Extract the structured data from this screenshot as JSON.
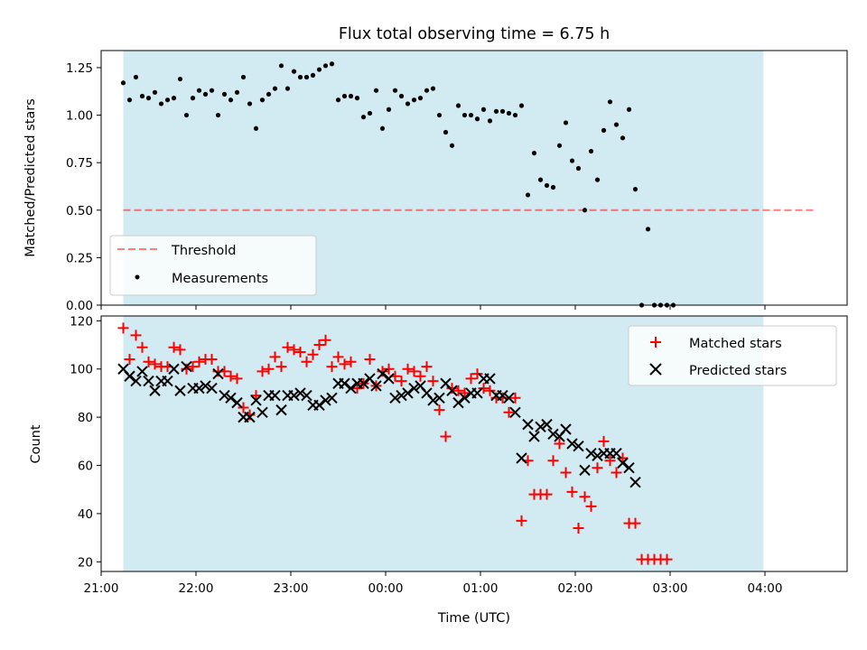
{
  "colors": {
    "shade": "#add8e6",
    "threshold": "#ff0000",
    "measurement": "#000000",
    "matched": "#ff0000",
    "predicted": "#000000"
  },
  "chart_data": [
    {
      "type": "scatter",
      "title": "Flux total observing time = 6.75 h",
      "ylabel": "Matched/Predicted stars",
      "xlabel": "",
      "xlim": [
        "21:00",
        "04:52"
      ],
      "ylim": [
        0,
        1.34
      ],
      "yticks": [
        "0.00",
        "0.25",
        "0.50",
        "0.75",
        "1.00",
        "1.25"
      ],
      "shaded_span": [
        "21:14",
        "03:59"
      ],
      "legend_placement": "lower-left",
      "threshold": {
        "name": "Threshold",
        "value": 0.5,
        "from": "21:14",
        "to": "04:31",
        "style": "dashed"
      },
      "series": [
        {
          "name": "Measurements",
          "points": [
            [
              "21:14",
              1.17
            ],
            [
              "21:18",
              1.08
            ],
            [
              "21:22",
              1.2
            ],
            [
              "21:26",
              1.1
            ],
            [
              "21:30",
              1.09
            ],
            [
              "21:34",
              1.12
            ],
            [
              "21:38",
              1.06
            ],
            [
              "21:42",
              1.08
            ],
            [
              "21:46",
              1.09
            ],
            [
              "21:50",
              1.19
            ],
            [
              "21:54",
              1.0
            ],
            [
              "21:58",
              1.09
            ],
            [
              "22:02",
              1.13
            ],
            [
              "22:06",
              1.11
            ],
            [
              "22:10",
              1.13
            ],
            [
              "22:14",
              1.0
            ],
            [
              "22:18",
              1.11
            ],
            [
              "22:22",
              1.08
            ],
            [
              "22:26",
              1.12
            ],
            [
              "22:30",
              1.2
            ],
            [
              "22:34",
              1.06
            ],
            [
              "22:38",
              0.93
            ],
            [
              "22:42",
              1.08
            ],
            [
              "22:46",
              1.11
            ],
            [
              "22:50",
              1.14
            ],
            [
              "22:54",
              1.26
            ],
            [
              "22:58",
              1.14
            ],
            [
              "23:02",
              1.23
            ],
            [
              "23:06",
              1.2
            ],
            [
              "23:10",
              1.2
            ],
            [
              "23:14",
              1.21
            ],
            [
              "23:18",
              1.24
            ],
            [
              "23:22",
              1.26
            ],
            [
              "23:26",
              1.27
            ],
            [
              "23:30",
              1.08
            ],
            [
              "23:34",
              1.1
            ],
            [
              "23:38",
              1.1
            ],
            [
              "23:42",
              1.09
            ],
            [
              "23:46",
              0.99
            ],
            [
              "23:50",
              1.01
            ],
            [
              "23:54",
              1.13
            ],
            [
              "23:58",
              0.93
            ],
            [
              "00:02",
              1.03
            ],
            [
              "00:06",
              1.13
            ],
            [
              "00:10",
              1.1
            ],
            [
              "00:14",
              1.06
            ],
            [
              "00:18",
              1.08
            ],
            [
              "00:22",
              1.09
            ],
            [
              "00:26",
              1.13
            ],
            [
              "00:30",
              1.14
            ],
            [
              "00:34",
              1.0
            ],
            [
              "00:38",
              0.91
            ],
            [
              "00:42",
              0.84
            ],
            [
              "00:46",
              1.05
            ],
            [
              "00:50",
              1.0
            ],
            [
              "00:54",
              1.0
            ],
            [
              "00:58",
              0.98
            ],
            [
              "01:02",
              1.03
            ],
            [
              "01:06",
              0.97
            ],
            [
              "01:10",
              1.02
            ],
            [
              "01:14",
              1.02
            ],
            [
              "01:18",
              1.01
            ],
            [
              "01:22",
              1.0
            ],
            [
              "01:26",
              1.05
            ],
            [
              "01:30",
              0.58
            ],
            [
              "01:34",
              0.8
            ],
            [
              "01:38",
              0.66
            ],
            [
              "01:42",
              0.63
            ],
            [
              "01:46",
              0.62
            ],
            [
              "01:50",
              0.84
            ],
            [
              "01:54",
              0.96
            ],
            [
              "01:58",
              0.76
            ],
            [
              "02:02",
              0.72
            ],
            [
              "02:06",
              0.5
            ],
            [
              "02:10",
              0.81
            ],
            [
              "02:14",
              0.66
            ],
            [
              "02:18",
              0.92
            ],
            [
              "02:22",
              1.07
            ],
            [
              "02:26",
              0.95
            ],
            [
              "02:30",
              0.88
            ],
            [
              "02:34",
              1.03
            ],
            [
              "02:38",
              0.61
            ],
            [
              "02:42",
              0.0
            ],
            [
              "02:46",
              0.4
            ],
            [
              "02:50",
              0.0
            ],
            [
              "02:54",
              0.0
            ],
            [
              "02:58",
              0.0
            ],
            [
              "03:02",
              0.0
            ]
          ]
        }
      ]
    },
    {
      "type": "scatter",
      "title": "",
      "ylabel": "Count",
      "xlabel": "Time (UTC)",
      "xlim": [
        "21:00",
        "04:52"
      ],
      "ylim": [
        16,
        122
      ],
      "yticks": [
        "20",
        "40",
        "60",
        "80",
        "100",
        "120"
      ],
      "xticks": [
        "21:00",
        "22:00",
        "23:00",
        "00:00",
        "01:00",
        "02:00",
        "03:00",
        "04:00"
      ],
      "shaded_span": [
        "21:14",
        "03:59"
      ],
      "legend_placement": "upper-right",
      "series": [
        {
          "name": "Matched stars",
          "marker": "plus",
          "points": [
            [
              "21:14",
              117
            ],
            [
              "21:18",
              104
            ],
            [
              "21:22",
              114
            ],
            [
              "21:26",
              109
            ],
            [
              "21:30",
              103
            ],
            [
              "21:34",
              102
            ],
            [
              "21:38",
              101
            ],
            [
              "21:42",
              101
            ],
            [
              "21:46",
              109
            ],
            [
              "21:50",
              108
            ],
            [
              "21:54",
              100
            ],
            [
              "21:58",
              101
            ],
            [
              "22:02",
              103
            ],
            [
              "22:06",
              104
            ],
            [
              "22:10",
              104
            ],
            [
              "22:14",
              99
            ],
            [
              "22:18",
              99
            ],
            [
              "22:22",
              97
            ],
            [
              "22:26",
              96
            ],
            [
              "22:30",
              84
            ],
            [
              "22:34",
              81
            ],
            [
              "22:38",
              89
            ],
            [
              "22:42",
              99
            ],
            [
              "22:46",
              100
            ],
            [
              "22:50",
              105
            ],
            [
              "22:54",
              101
            ],
            [
              "22:58",
              109
            ],
            [
              "23:02",
              108
            ],
            [
              "23:06",
              107
            ],
            [
              "23:10",
              103
            ],
            [
              "23:14",
              106
            ],
            [
              "23:18",
              110
            ],
            [
              "23:22",
              112
            ],
            [
              "23:26",
              101
            ],
            [
              "23:30",
              105
            ],
            [
              "23:34",
              102
            ],
            [
              "23:38",
              103
            ],
            [
              "23:42",
              92
            ],
            [
              "23:46",
              94
            ],
            [
              "23:50",
              104
            ],
            [
              "23:54",
              93
            ],
            [
              "23:58",
              99
            ],
            [
              "00:02",
              100
            ],
            [
              "00:06",
              97
            ],
            [
              "00:10",
              95
            ],
            [
              "00:14",
              100
            ],
            [
              "00:18",
              99
            ],
            [
              "00:22",
              97
            ],
            [
              "00:26",
              101
            ],
            [
              "00:30",
              95
            ],
            [
              "00:34",
              83
            ],
            [
              "00:38",
              72
            ],
            [
              "00:42",
              92
            ],
            [
              "00:46",
              91
            ],
            [
              "00:50",
              90
            ],
            [
              "00:54",
              96
            ],
            [
              "00:58",
              98
            ],
            [
              "01:02",
              92
            ],
            [
              "01:06",
              91
            ],
            [
              "01:10",
              88
            ],
            [
              "01:14",
              88
            ],
            [
              "01:18",
              82
            ],
            [
              "01:22",
              88
            ],
            [
              "01:26",
              37
            ],
            [
              "01:30",
              62
            ],
            [
              "01:34",
              48
            ],
            [
              "01:38",
              48
            ],
            [
              "01:42",
              48
            ],
            [
              "01:46",
              62
            ],
            [
              "01:50",
              69
            ],
            [
              "01:54",
              57
            ],
            [
              "01:58",
              49
            ],
            [
              "02:02",
              34
            ],
            [
              "02:06",
              47
            ],
            [
              "02:10",
              43
            ],
            [
              "02:14",
              59
            ],
            [
              "02:18",
              70
            ],
            [
              "02:22",
              62
            ],
            [
              "02:26",
              57
            ],
            [
              "02:30",
              63
            ],
            [
              "02:34",
              36
            ],
            [
              "02:38",
              36
            ],
            [
              "02:42",
              21
            ],
            [
              "02:46",
              21
            ],
            [
              "02:50",
              21
            ],
            [
              "02:54",
              21
            ],
            [
              "02:58",
              21
            ]
          ]
        },
        {
          "name": "Predicted stars",
          "marker": "x",
          "points": [
            [
              "21:14",
              100
            ],
            [
              "21:18",
              97
            ],
            [
              "21:22",
              95
            ],
            [
              "21:26",
              99
            ],
            [
              "21:30",
              95
            ],
            [
              "21:34",
              91
            ],
            [
              "21:38",
              95
            ],
            [
              "21:42",
              95
            ],
            [
              "21:46",
              100
            ],
            [
              "21:50",
              91
            ],
            [
              "21:54",
              101
            ],
            [
              "21:58",
              92
            ],
            [
              "22:02",
              92
            ],
            [
              "22:06",
              93
            ],
            [
              "22:10",
              92
            ],
            [
              "22:14",
              98
            ],
            [
              "22:18",
              89
            ],
            [
              "22:22",
              88
            ],
            [
              "22:26",
              86
            ],
            [
              "22:30",
              80
            ],
            [
              "22:34",
              80
            ],
            [
              "22:38",
              87
            ],
            [
              "22:42",
              82
            ],
            [
              "22:46",
              89
            ],
            [
              "22:50",
              89
            ],
            [
              "22:54",
              83
            ],
            [
              "22:58",
              89
            ],
            [
              "23:02",
              89
            ],
            [
              "23:06",
              90
            ],
            [
              "23:10",
              89
            ],
            [
              "23:14",
              85
            ],
            [
              "23:18",
              85
            ],
            [
              "23:22",
              87
            ],
            [
              "23:26",
              88
            ],
            [
              "23:30",
              94
            ],
            [
              "23:34",
              94
            ],
            [
              "23:38",
              92
            ],
            [
              "23:42",
              94
            ],
            [
              "23:46",
              94
            ],
            [
              "23:50",
              96
            ],
            [
              "23:54",
              93
            ],
            [
              "23:58",
              98
            ],
            [
              "00:02",
              96
            ],
            [
              "00:06",
              88
            ],
            [
              "00:10",
              89
            ],
            [
              "00:14",
              90
            ],
            [
              "00:18",
              92
            ],
            [
              "00:22",
              93
            ],
            [
              "00:26",
              90
            ],
            [
              "00:30",
              87
            ],
            [
              "00:34",
              88
            ],
            [
              "00:38",
              94
            ],
            [
              "00:42",
              91
            ],
            [
              "00:46",
              86
            ],
            [
              "00:50",
              88
            ],
            [
              "00:54",
              90
            ],
            [
              "00:58",
              90
            ],
            [
              "01:02",
              96
            ],
            [
              "01:06",
              96
            ],
            [
              "01:10",
              89
            ],
            [
              "01:14",
              89
            ],
            [
              "01:18",
              88
            ],
            [
              "01:22",
              82
            ],
            [
              "01:26",
              63
            ],
            [
              "01:30",
              77
            ],
            [
              "01:34",
              72
            ],
            [
              "01:38",
              76
            ],
            [
              "01:42",
              77
            ],
            [
              "01:46",
              73
            ],
            [
              "01:50",
              72
            ],
            [
              "01:54",
              75
            ],
            [
              "01:58",
              69
            ],
            [
              "02:02",
              68
            ],
            [
              "02:06",
              58
            ],
            [
              "02:10",
              65
            ],
            [
              "02:14",
              64
            ],
            [
              "02:18",
              65
            ],
            [
              "02:22",
              65
            ],
            [
              "02:26",
              65
            ],
            [
              "02:30",
              61
            ],
            [
              "02:34",
              59
            ],
            [
              "02:38",
              53
            ]
          ]
        }
      ]
    }
  ]
}
